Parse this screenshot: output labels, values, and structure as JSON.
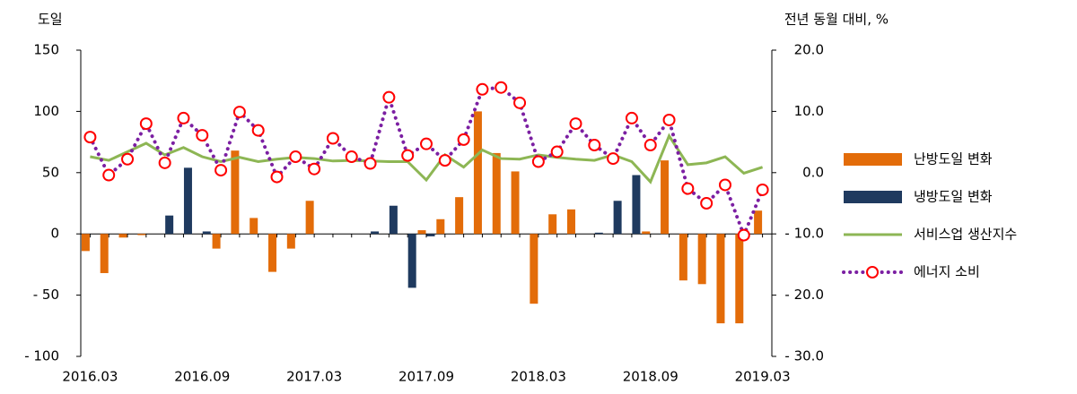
{
  "chart_data": {
    "type": "bar",
    "y_label": "도일",
    "y2_label": "전년 동월 대비, %",
    "categories": [
      "2016.03",
      null,
      null,
      null,
      null,
      null,
      "2016.09",
      null,
      null,
      null,
      null,
      null,
      "2017.03",
      null,
      null,
      null,
      null,
      null,
      "2017.09",
      null,
      null,
      null,
      null,
      null,
      "2018.03",
      null,
      null,
      null,
      null,
      null,
      "2018.09",
      null,
      null,
      null,
      null,
      null,
      "2019.03"
    ],
    "ylim": [
      -100,
      150
    ],
    "yticks": [
      {
        "value": -100,
        "label": "- 100"
      },
      {
        "value": -50,
        "label": "- 50"
      },
      0,
      50,
      100,
      150
    ],
    "y2lim": [
      -30,
      20
    ],
    "y2ticks": [
      {
        "value": -30,
        "label": "- 30.0"
      },
      {
        "value": -20,
        "label": "- 20.0"
      },
      {
        "value": -10,
        "label": "- 10.0"
      },
      {
        "value": 0,
        "label": "0.0"
      },
      {
        "value": 10,
        "label": "10.0"
      },
      {
        "value": 20,
        "label": "20.0"
      }
    ],
    "grid": false,
    "legend": "right",
    "series": [
      {
        "name": "난방도일 변화",
        "type": "bar",
        "color": "#e36c09",
        "values": [
          -14,
          -32,
          -3,
          -1,
          0,
          0,
          0,
          -12,
          68,
          13,
          -31,
          -12,
          27,
          0,
          0,
          0,
          0,
          0,
          3,
          12,
          30,
          100,
          66,
          51,
          -57,
          16,
          20,
          0,
          0,
          0,
          2,
          60,
          -38,
          -41,
          -73,
          -73,
          19
        ]
      },
      {
        "name": "냉방도일 변화",
        "type": "bar",
        "color": "#1f3a5f",
        "values": [
          0,
          0,
          0,
          0,
          15,
          54,
          2,
          0,
          0,
          0,
          0,
          0,
          0,
          0,
          0,
          2,
          23,
          -44,
          -2,
          0,
          0,
          0,
          0,
          0,
          0,
          0,
          0,
          1,
          27,
          48,
          0,
          0,
          0,
          0,
          0,
          0,
          0
        ]
      },
      {
        "name": "서비스업 생산지수",
        "type": "line",
        "axis": "y2",
        "color": "#8db654",
        "values": [
          2.6,
          2.0,
          3.4,
          4.8,
          2.9,
          4.1,
          2.6,
          1.8,
          2.5,
          1.8,
          2.2,
          2.5,
          2.3,
          1.9,
          2.0,
          1.9,
          1.8,
          1.8,
          -1.2,
          2.9,
          0.9,
          3.7,
          2.3,
          2.2,
          2.9,
          2.5,
          2.2,
          2.0,
          2.9,
          1.8,
          -1.5,
          6.0,
          1.3,
          1.6,
          2.6,
          -0.1,
          0.9
        ]
      },
      {
        "name": "에너지 소비",
        "type": "line",
        "axis": "y2",
        "color": "#7b1fa2",
        "marker": "circle",
        "marker_color": "#ff0000",
        "line_style": "dotted",
        "values": [
          5.8,
          -0.4,
          2.2,
          8.0,
          1.6,
          8.9,
          6.1,
          0.4,
          9.9,
          6.9,
          -0.7,
          2.6,
          0.6,
          5.6,
          2.6,
          1.5,
          12.3,
          2.8,
          4.7,
          2.0,
          5.4,
          13.6,
          13.9,
          11.4,
          1.8,
          3.4,
          8.0,
          4.5,
          2.3,
          8.9,
          4.5,
          8.6,
          -2.6,
          -5.0,
          -2.0,
          -10.2,
          -2.8
        ]
      }
    ]
  }
}
